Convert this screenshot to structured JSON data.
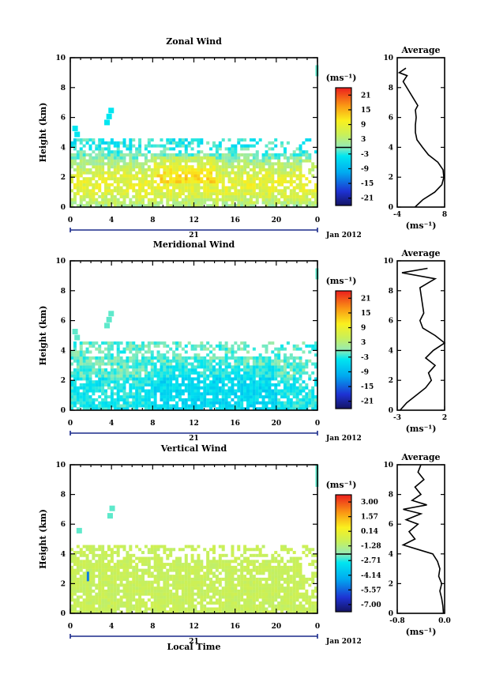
{
  "chart_data": [
    {
      "type": "heatmap",
      "title": "Zonal Wind",
      "ylabel": "Height (km)",
      "ylim": [
        0,
        10
      ],
      "yticks": [
        "0",
        "2",
        "4",
        "6",
        "8",
        "10"
      ],
      "xlim": [
        0,
        24
      ],
      "xticks": [
        "0",
        "4",
        "8",
        "12",
        "16",
        "20",
        "0"
      ],
      "day_label": "21",
      "date_label": "Jan 2012",
      "colorbar": {
        "unit": "(ms⁻¹)",
        "ticks": [
          "21",
          "15",
          "9",
          "3",
          "-3",
          "-9",
          "-15",
          "-21"
        ],
        "min": -24,
        "max": 24
      },
      "profile": {
        "title": "Average",
        "xlabel": "(ms⁻¹)",
        "xticks": [
          "-4",
          "8"
        ],
        "xlim": [
          -4,
          8
        ],
        "height": [
          0.0,
          0.5,
          1.0,
          1.5,
          2.0,
          2.5,
          3.0,
          3.5,
          4.0,
          4.5,
          5.0,
          5.5,
          6.0,
          6.5,
          6.8,
          8.4,
          8.8,
          9.0,
          9.3
        ],
        "values": [
          0.5,
          2.5,
          5.5,
          7.3,
          7.8,
          7.6,
          6.3,
          3.9,
          2.4,
          1.0,
          0.6,
          0.6,
          0.8,
          0.6,
          1.2,
          -2.5,
          -1.5,
          -3.5,
          -1.8
        ]
      }
    },
    {
      "type": "heatmap",
      "title": "Meridional Wind",
      "ylabel": "Height (km)",
      "ylim": [
        0,
        10
      ],
      "yticks": [
        "0",
        "2",
        "4",
        "6",
        "8",
        "10"
      ],
      "xlim": [
        0,
        24
      ],
      "xticks": [
        "0",
        "4",
        "8",
        "12",
        "16",
        "20",
        "0"
      ],
      "day_label": "21",
      "date_label": "Jan 2012",
      "colorbar": {
        "unit": "(ms⁻¹)",
        "ticks": [
          "21",
          "15",
          "9",
          "3",
          "-3",
          "-9",
          "-15",
          "-21"
        ],
        "min": -24,
        "max": 24
      },
      "profile": {
        "title": "Average",
        "xlabel": "(ms⁻¹)",
        "xticks": [
          "-3",
          "2"
        ],
        "xlim": [
          -3,
          2
        ],
        "height": [
          0.0,
          0.5,
          1.0,
          1.5,
          2.0,
          2.5,
          3.0,
          3.5,
          4.0,
          4.5,
          5.0,
          5.5,
          6.0,
          6.5,
          8.2,
          8.8,
          9.2,
          9.5
        ],
        "values": [
          -2.7,
          -2.0,
          -1.0,
          0.0,
          0.6,
          0.3,
          1.0,
          0.0,
          0.8,
          2.0,
          1.0,
          -0.3,
          -0.6,
          -0.2,
          -0.6,
          1.0,
          -2.5,
          0.2
        ]
      }
    },
    {
      "type": "heatmap",
      "title": "Vertical Wind",
      "ylabel": "Height (km)",
      "xlabel": "Local Time",
      "ylim": [
        0,
        10
      ],
      "yticks": [
        "0",
        "2",
        "4",
        "6",
        "8",
        "10"
      ],
      "xlim": [
        0,
        24
      ],
      "xticks": [
        "0",
        "4",
        "8",
        "12",
        "16",
        "20",
        "0"
      ],
      "day_label": "21",
      "date_label": "Jan 2012",
      "colorbar": {
        "unit": "(ms⁻¹)",
        "ticks": [
          "3.00",
          "1.57",
          "0.14",
          "-1.28",
          "-2.71",
          "-4.14",
          "-5.57",
          "-7.00"
        ],
        "min": -7.7,
        "max": 3.7
      },
      "profile": {
        "title": "Average",
        "xlabel": "(ms⁻¹)",
        "xticks": [
          "-0.8",
          "0.0"
        ],
        "xlim": [
          -0.8,
          0.0
        ],
        "height": [
          0.0,
          0.5,
          1.0,
          1.5,
          2.0,
          2.5,
          3.0,
          3.5,
          4.0,
          4.3,
          4.6,
          5.0,
          5.5,
          6.0,
          6.3,
          6.7,
          7.0,
          7.3,
          7.6,
          8.0,
          8.5,
          9.0,
          9.5,
          10.0
        ],
        "values": [
          -0.02,
          -0.03,
          -0.05,
          -0.08,
          -0.05,
          -0.1,
          -0.08,
          -0.12,
          -0.2,
          -0.45,
          -0.7,
          -0.5,
          -0.6,
          -0.45,
          -0.65,
          -0.4,
          -0.7,
          -0.3,
          -0.55,
          -0.4,
          -0.5,
          -0.35,
          -0.45,
          -0.4
        ]
      }
    }
  ]
}
